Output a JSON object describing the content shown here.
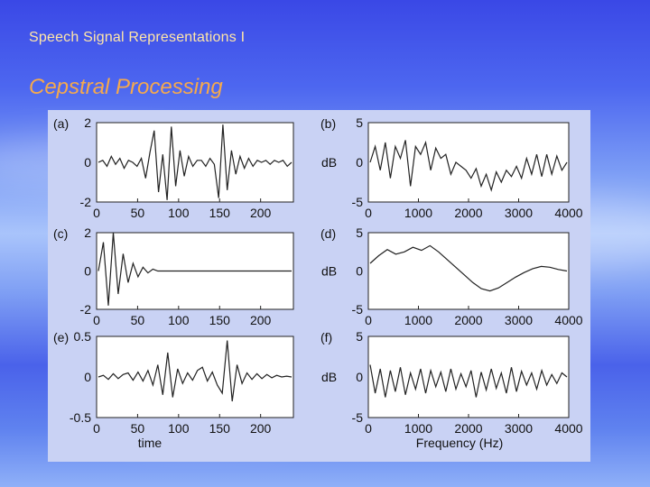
{
  "header": {
    "title": "Speech Signal Representations I"
  },
  "slide": {
    "title": "Cepstral Processing"
  },
  "colors": {
    "background": "#4d67f0",
    "title": "#f5a94d",
    "header": "#ffe6a8",
    "figure_bg": "#c9d2f4"
  },
  "figure": {
    "time_axis_label": "time",
    "freq_axis_label": "Frequency (Hz)",
    "db_label": "dB"
  },
  "chart_data": [
    {
      "type": "line",
      "panel": "(a)",
      "ylabel": "",
      "xlim": [
        0,
        240
      ],
      "ylim": [
        -2,
        2
      ],
      "xticks": [
        "0",
        "50",
        "100",
        "150",
        "200"
      ],
      "yticks": [
        "2",
        "0",
        "-2"
      ],
      "series": [
        {
          "values": [
            0,
            0.1,
            -0.2,
            0.3,
            -0.1,
            0.2,
            -0.3,
            0.1,
            0,
            -0.2,
            0.2,
            -0.8,
            0.5,
            1.6,
            -1.5,
            0.4,
            -1.9,
            1.8,
            -1.2,
            0.6,
            -0.7,
            0.3,
            -0.2,
            0.1,
            0.1,
            -0.2,
            0.2,
            -0.1,
            -1.8,
            1.9,
            -1.4,
            0.6,
            -0.6,
            0.3,
            -0.3,
            0.2,
            -0.2,
            0.1,
            0,
            0.1,
            -0.1,
            0.1,
            0,
            0.1,
            -0.2,
            0
          ]
        }
      ]
    },
    {
      "type": "line",
      "panel": "(b)",
      "ylabel": "dB",
      "xlim": [
        0,
        4000
      ],
      "ylim": [
        -5,
        5
      ],
      "xticks": [
        "0",
        "1000",
        "2000",
        "3000",
        "4000"
      ],
      "yticks": [
        "5",
        "0",
        "-5"
      ],
      "series": [
        {
          "values": [
            0,
            2,
            -1,
            2.5,
            -2,
            2,
            0.5,
            2.8,
            -3,
            2,
            1,
            2.5,
            -1,
            1.8,
            0.5,
            1,
            -1.5,
            0,
            -0.5,
            -1,
            -2,
            -0.8,
            -3,
            -1.5,
            -3.5,
            -1.2,
            -2.5,
            -1,
            -1.8,
            -0.5,
            -2,
            0.5,
            -1.5,
            1,
            -1.8,
            1,
            -1.5,
            0.8,
            -1,
            0
          ]
        }
      ]
    },
    {
      "type": "line",
      "panel": "(c)",
      "ylabel": "",
      "xlim": [
        0,
        240
      ],
      "ylim": [
        -2,
        2
      ],
      "xticks": [
        "0",
        "50",
        "100",
        "150",
        "200"
      ],
      "yticks": [
        "2",
        "0",
        "-2"
      ],
      "series": [
        {
          "values": [
            0,
            1.5,
            -1.8,
            2,
            -1.2,
            0.9,
            -0.6,
            0.4,
            -0.3,
            0.2,
            -0.1,
            0.1,
            0,
            0,
            0,
            0,
            0,
            0,
            0,
            0,
            0,
            0,
            0,
            0,
            0,
            0,
            0,
            0,
            0,
            0,
            0,
            0,
            0,
            0,
            0,
            0,
            0,
            0,
            0,
            0
          ]
        }
      ]
    },
    {
      "type": "line",
      "panel": "(d)",
      "ylabel": "dB",
      "xlim": [
        0,
        4000
      ],
      "ylim": [
        -5,
        5
      ],
      "xticks": [
        "0",
        "1000",
        "2000",
        "3000",
        "4000"
      ],
      "yticks": [
        "5",
        "0",
        "-5"
      ],
      "series": [
        {
          "values": [
            1,
            2,
            2.8,
            2.2,
            2.5,
            3.1,
            2.7,
            3.3,
            2.5,
            1.5,
            0.5,
            -0.5,
            -1.5,
            -2.3,
            -2.6,
            -2.2,
            -1.5,
            -0.8,
            -0.2,
            0.3,
            0.6,
            0.5,
            0.2,
            0
          ]
        }
      ]
    },
    {
      "type": "line",
      "panel": "(e)",
      "ylabel": "",
      "xlim": [
        0,
        240
      ],
      "ylim": [
        -0.5,
        0.5
      ],
      "xticks": [
        "0",
        "50",
        "100",
        "150",
        "200"
      ],
      "yticks": [
        "0.5",
        "0",
        "-0.5"
      ],
      "xlabel": "time",
      "series": [
        {
          "values": [
            0,
            0.02,
            -0.03,
            0.04,
            -0.02,
            0.03,
            0.05,
            -0.04,
            0.06,
            -0.05,
            0.08,
            -0.1,
            0.15,
            -0.22,
            0.3,
            -0.25,
            0.1,
            -0.08,
            0.05,
            -0.04,
            0.08,
            0.12,
            -0.05,
            0.06,
            -0.1,
            -0.2,
            0.45,
            -0.3,
            0.15,
            -0.08,
            0.05,
            -0.03,
            0.04,
            -0.02,
            0.03,
            -0.01,
            0.02,
            0,
            0.01,
            0
          ]
        }
      ]
    },
    {
      "type": "line",
      "panel": "(f)",
      "ylabel": "dB",
      "xlim": [
        0,
        4000
      ],
      "ylim": [
        -5,
        5
      ],
      "xticks": [
        "0",
        "1000",
        "2000",
        "3000",
        "4000"
      ],
      "yticks": [
        "5",
        "0",
        "-5"
      ],
      "xlabel": "Frequency (Hz)",
      "series": [
        {
          "values": [
            1.5,
            -2,
            1,
            -2.5,
            0.8,
            -1.8,
            1.2,
            -2.2,
            0.5,
            -1.5,
            1,
            -2,
            0.8,
            -1.2,
            0.6,
            -1.8,
            1,
            -1.5,
            0.4,
            -1.2,
            0.8,
            -2.5,
            0.6,
            -1.6,
            1,
            -1.4,
            0.5,
            -2,
            1.2,
            -1.8,
            0.7,
            -1,
            0.5,
            -1.5,
            0.8,
            -1,
            0.3,
            -0.8,
            0.5,
            0
          ]
        }
      ]
    }
  ]
}
